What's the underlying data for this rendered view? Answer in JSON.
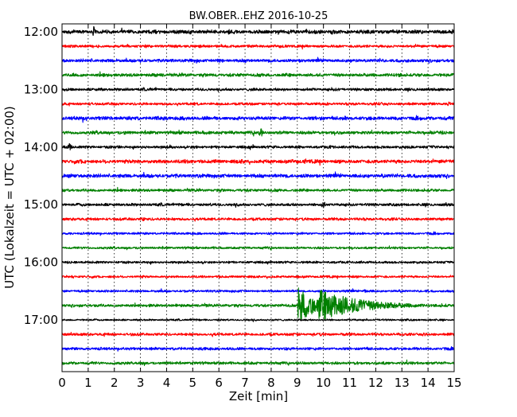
{
  "chart_data": {
    "type": "line",
    "title": "BW.OBER..EHZ 2016-10-25",
    "xlabel": "Zeit  [min]",
    "ylabel": "UTC (Lokalzeit = UTC + 02:00)",
    "xlim": [
      0,
      15
    ],
    "x_ticks": [
      0,
      1,
      2,
      3,
      4,
      5,
      6,
      7,
      8,
      9,
      10,
      11,
      12,
      13,
      14,
      15
    ],
    "y_tick_labels": [
      "12:00",
      "13:00",
      "14:00",
      "15:00",
      "16:00",
      "17:00"
    ],
    "grid": "dotted vertical",
    "trace_colors": [
      "#000000",
      "#ff0000",
      "#0000ff",
      "#008000"
    ],
    "traces": [
      {
        "start": "12:00",
        "amplitude": 0.4,
        "events": [
          {
            "x": 1.2,
            "amp": 1.0
          },
          {
            "x": 4.9,
            "amp": 0.5
          },
          {
            "x": 10.3,
            "amp": 0.6
          }
        ]
      },
      {
        "start": "12:15",
        "amplitude": 0.3,
        "events": []
      },
      {
        "start": "12:30",
        "amplitude": 0.35,
        "events": [
          {
            "x": 6.0,
            "amp": 0.45
          }
        ]
      },
      {
        "start": "12:45",
        "amplitude": 0.35,
        "events": [
          {
            "x": 0.4,
            "amp": 0.5
          }
        ]
      },
      {
        "start": "13:00",
        "amplitude": 0.3,
        "events": []
      },
      {
        "start": "13:15",
        "amplitude": 0.3,
        "events": [
          {
            "x": 14.8,
            "amp": 0.5
          }
        ]
      },
      {
        "start": "13:30",
        "amplitude": 0.4,
        "events": [
          {
            "x": 0.9,
            "amp": 0.55
          }
        ]
      },
      {
        "start": "13:45",
        "amplitude": 0.35,
        "events": [
          {
            "x": 7.6,
            "amp": 0.9
          },
          {
            "x": 14.1,
            "amp": 0.5
          }
        ]
      },
      {
        "start": "14:00",
        "amplitude": 0.3,
        "events": [
          {
            "x": 0.3,
            "amp": 0.7
          }
        ]
      },
      {
        "start": "14:15",
        "amplitude": 0.4,
        "events": [
          {
            "x": 9.3,
            "amp": 0.5
          }
        ]
      },
      {
        "start": "14:30",
        "amplitude": 0.4,
        "events": []
      },
      {
        "start": "14:45",
        "amplitude": 0.3,
        "events": []
      },
      {
        "start": "15:00",
        "amplitude": 0.3,
        "events": [
          {
            "x": 10.0,
            "amp": 0.7
          }
        ]
      },
      {
        "start": "15:15",
        "amplitude": 0.3,
        "events": [
          {
            "x": 3.1,
            "amp": 0.5
          }
        ]
      },
      {
        "start": "15:30",
        "amplitude": 0.25,
        "events": []
      },
      {
        "start": "15:45",
        "amplitude": 0.25,
        "events": []
      },
      {
        "start": "16:00",
        "amplitude": 0.25,
        "events": []
      },
      {
        "start": "16:15",
        "amplitude": 0.25,
        "events": []
      },
      {
        "start": "16:30",
        "amplitude": 0.25,
        "events": [
          {
            "x": 11.6,
            "amp": 0.5
          }
        ]
      },
      {
        "start": "16:45",
        "amplitude": 0.3,
        "events": [
          {
            "x": 9.1,
            "amp": 3.2,
            "decay": 0.7
          },
          {
            "x": 9.9,
            "amp": 2.8,
            "decay": 1.6
          }
        ]
      },
      {
        "start": "17:00",
        "amplitude": 0.2,
        "events": []
      },
      {
        "start": "17:15",
        "amplitude": 0.3,
        "events": []
      },
      {
        "start": "17:30",
        "amplitude": 0.3,
        "events": []
      },
      {
        "start": "17:45",
        "amplitude": 0.3,
        "events": []
      }
    ]
  }
}
